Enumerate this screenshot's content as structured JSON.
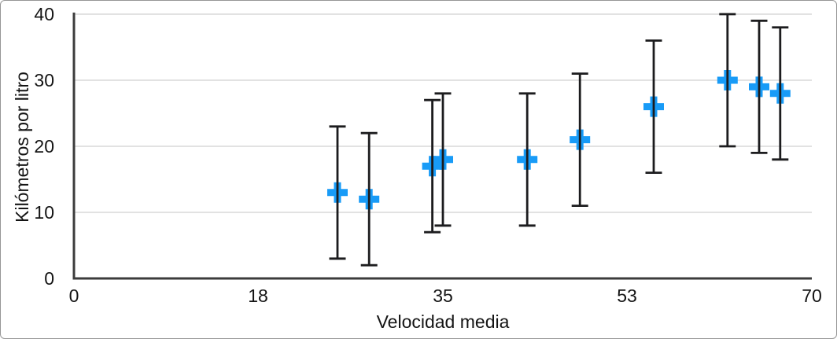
{
  "frame": {
    "border_color": "#969696",
    "background": "#ffffff"
  },
  "chart_data": {
    "type": "scatter",
    "title": "",
    "xlabel": "Velocidad media",
    "ylabel": "Kilómetros por litro",
    "xlim": [
      0,
      70
    ],
    "ylim": [
      0,
      40
    ],
    "x_tick_labels": [
      "0",
      "18",
      "35",
      "53",
      "70"
    ],
    "y_tick_labels": [
      "0",
      "10",
      "20",
      "30",
      "40"
    ],
    "grid": true,
    "legend": false,
    "colors": {
      "marker": "#189bf7",
      "error_bar": "#1c1c1e",
      "axis_line": "#3c3c3c",
      "grid_line": "#d9d9d9",
      "text": "#141414"
    },
    "series": [
      {
        "name": "Kilómetros por litro",
        "marker": "plus",
        "marker_color": "#189bf7",
        "error_bar_color": "#1c1c1e",
        "points": [
          {
            "x": 25,
            "y": 13,
            "err_minus": 10,
            "err_plus": 10
          },
          {
            "x": 28,
            "y": 12,
            "err_minus": 10,
            "err_plus": 10
          },
          {
            "x": 34,
            "y": 17,
            "err_minus": 10,
            "err_plus": 10
          },
          {
            "x": 35,
            "y": 18,
            "err_minus": 10,
            "err_plus": 10
          },
          {
            "x": 43,
            "y": 18,
            "err_minus": 10,
            "err_plus": 10
          },
          {
            "x": 48,
            "y": 21,
            "err_minus": 10,
            "err_plus": 10
          },
          {
            "x": 55,
            "y": 26,
            "err_minus": 10,
            "err_plus": 10
          },
          {
            "x": 62,
            "y": 30,
            "err_minus": 10,
            "err_plus": 10
          },
          {
            "x": 65,
            "y": 29,
            "err_minus": 10,
            "err_plus": 10
          },
          {
            "x": 67,
            "y": 28,
            "err_minus": 10,
            "err_plus": 10
          }
        ]
      }
    ]
  }
}
